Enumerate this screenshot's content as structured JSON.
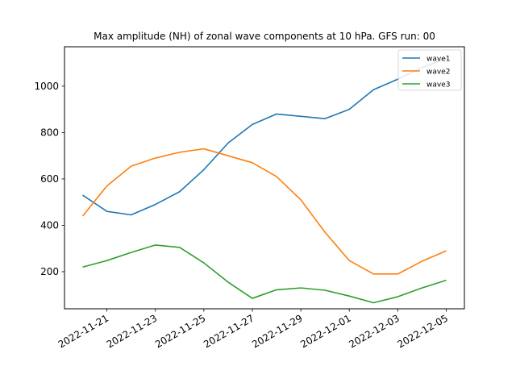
{
  "chart_data": {
    "type": "line",
    "title": "Max amplitude (NH) of zonal wave components at 10 hPa. GFS run: 00",
    "xlabel": "",
    "ylabel": "",
    "x": [
      "2022-11-20",
      "2022-11-21",
      "2022-11-22",
      "2022-11-23",
      "2022-11-24",
      "2022-11-25",
      "2022-11-26",
      "2022-11-27",
      "2022-11-28",
      "2022-11-29",
      "2022-11-30",
      "2022-12-01",
      "2022-12-02",
      "2022-12-03",
      "2022-12-04",
      "2022-12-05"
    ],
    "xticks": [
      "2022-11-21",
      "2022-11-23",
      "2022-11-25",
      "2022-11-27",
      "2022-11-29",
      "2022-12-01",
      "2022-12-03",
      "2022-12-05"
    ],
    "yticks": [
      200,
      400,
      600,
      800,
      1000
    ],
    "ylim": [
      40,
      1170
    ],
    "grid": false,
    "legend_position": "top-right",
    "series": [
      {
        "name": "wave1",
        "color": "#1f77b4",
        "values": [
          530,
          460,
          445,
          490,
          545,
          640,
          755,
          835,
          880,
          870,
          860,
          900,
          985,
          1030,
          1080,
          1120
        ]
      },
      {
        "name": "wave2",
        "color": "#ff7f0e",
        "values": [
          440,
          570,
          655,
          690,
          715,
          730,
          700,
          670,
          610,
          510,
          370,
          248,
          190,
          190,
          245,
          290
        ]
      },
      {
        "name": "wave3",
        "color": "#2ca02c",
        "values": [
          220,
          248,
          283,
          315,
          305,
          238,
          155,
          85,
          122,
          130,
          120,
          95,
          66,
          92,
          130,
          163
        ]
      }
    ]
  }
}
